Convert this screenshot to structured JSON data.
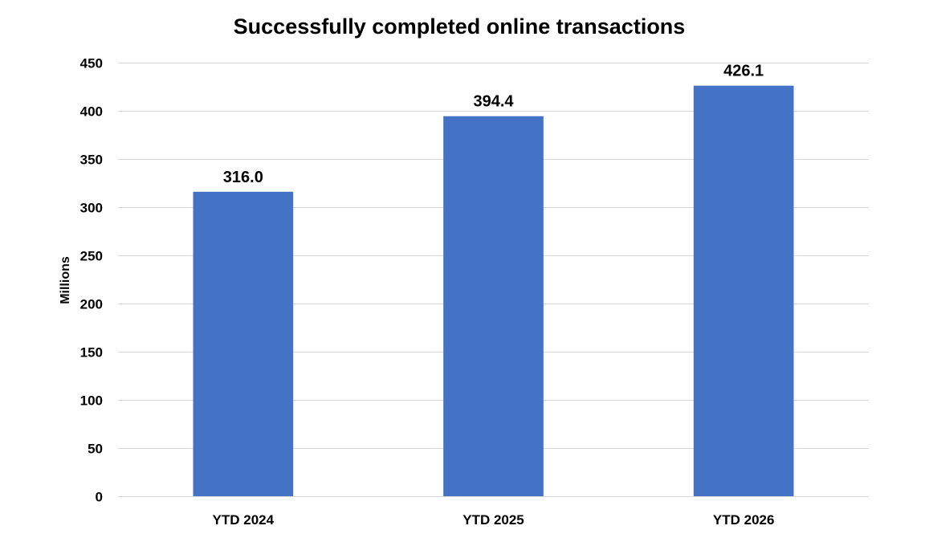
{
  "chart_data": {
    "type": "bar",
    "title": "Successfully completed online transactions",
    "xlabel": "",
    "ylabel": "Millions",
    "categories": [
      "YTD 2024",
      "YTD 2025",
      "YTD 2026"
    ],
    "values": [
      316.0,
      394.4,
      426.1
    ],
    "data_labels": [
      "316.0",
      "394.4",
      "426.1"
    ],
    "ylim": [
      0,
      450
    ],
    "yticks": [
      0,
      50,
      100,
      150,
      200,
      250,
      300,
      350,
      400,
      450
    ],
    "grid": true,
    "legend": "none",
    "colors": {
      "bar": "#4472C4",
      "grid": "#D9D9D9",
      "text": "#000000"
    }
  }
}
